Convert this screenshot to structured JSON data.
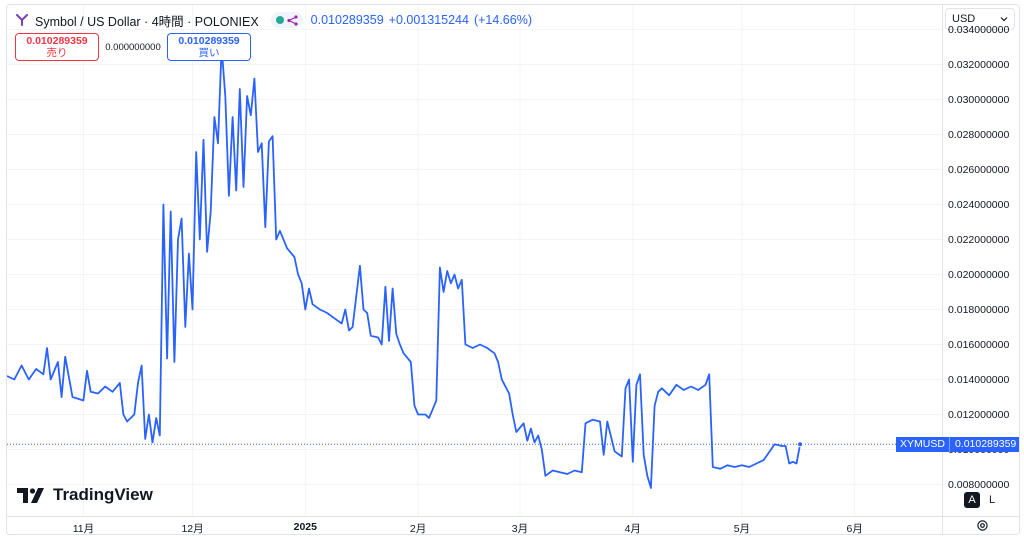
{
  "header": {
    "symbol_title": "Symbol / US Dollar · 4時間 · POLONIEX",
    "last_price": "0.010289359",
    "change": "+0.001315244",
    "change_pct": "(+14.66%)"
  },
  "trade": {
    "sell_value": "0.010289359",
    "sell_label": "売り",
    "spread": "0.000000000",
    "buy_value": "0.010289359",
    "buy_label": "買い"
  },
  "currency_select": {
    "value": "USD"
  },
  "price_tag": {
    "symbol": "XYMUSD",
    "value": "0.010289359"
  },
  "branding": {
    "logo_text": "TradingView"
  },
  "scale_buttons": {
    "auto": "A",
    "log": "L"
  },
  "colors": {
    "line": "#2962ff",
    "up": "#22ab94",
    "down": "#f23645",
    "axis_text": "#131722"
  },
  "chart_data": {
    "type": "line",
    "y_ticks": [
      "0.034000000",
      "0.032000000",
      "0.030000000",
      "0.028000000",
      "0.026000000",
      "0.024000000",
      "0.022000000",
      "0.020000000",
      "0.018000000",
      "0.016000000",
      "0.014000000",
      "0.012000000",
      "0.010000000",
      "0.008000000"
    ],
    "y_tick_values": [
      0.034,
      0.032,
      0.03,
      0.028,
      0.026,
      0.024,
      0.022,
      0.02,
      0.018,
      0.016,
      0.014,
      0.012,
      0.01,
      0.008
    ],
    "ylim": [
      0.0062,
      0.0354
    ],
    "x_ticks": [
      {
        "label": "11月",
        "date": "2024-11-01",
        "bold": false
      },
      {
        "label": "12月",
        "date": "2024-12-01",
        "bold": false
      },
      {
        "label": "2025",
        "date": "2025-01-01",
        "bold": true
      },
      {
        "label": "2月",
        "date": "2025-02-01",
        "bold": false
      },
      {
        "label": "3月",
        "date": "2025-03-01",
        "bold": false
      },
      {
        "label": "4月",
        "date": "2025-04-01",
        "bold": false
      },
      {
        "label": "5月",
        "date": "2025-05-01",
        "bold": false
      },
      {
        "label": "6月",
        "date": "2025-06-01",
        "bold": false
      }
    ],
    "xlim": [
      "2024-10-11",
      "2025-06-25"
    ],
    "series": [
      {
        "values": [
          [
            "2024-10-11",
            0.0142
          ],
          [
            "2024-10-13",
            0.014
          ],
          [
            "2024-10-15",
            0.0148
          ],
          [
            "2024-10-17",
            0.014
          ],
          [
            "2024-10-19",
            0.0146
          ],
          [
            "2024-10-21",
            0.0143
          ],
          [
            "2024-10-22",
            0.0158
          ],
          [
            "2024-10-23",
            0.014
          ],
          [
            "2024-10-25",
            0.015
          ],
          [
            "2024-10-26",
            0.013
          ],
          [
            "2024-10-27",
            0.0153
          ],
          [
            "2024-10-29",
            0.013
          ],
          [
            "2024-11-01",
            0.0128
          ],
          [
            "2024-11-02",
            0.0145
          ],
          [
            "2024-11-03",
            0.0133
          ],
          [
            "2024-11-05",
            0.0132
          ],
          [
            "2024-11-07",
            0.0136
          ],
          [
            "2024-11-09",
            0.0133
          ],
          [
            "2024-11-11",
            0.0138
          ],
          [
            "2024-11-12",
            0.012
          ],
          [
            "2024-11-13",
            0.0116
          ],
          [
            "2024-11-15",
            0.012
          ],
          [
            "2024-11-16",
            0.0138
          ],
          [
            "2024-11-17",
            0.0148
          ],
          [
            "2024-11-18",
            0.0106
          ],
          [
            "2024-11-19",
            0.012
          ],
          [
            "2024-11-20",
            0.0104
          ],
          [
            "2024-11-21",
            0.0118
          ],
          [
            "2024-11-22",
            0.0108
          ],
          [
            "2024-11-23",
            0.024
          ],
          [
            "2024-11-24",
            0.0152
          ],
          [
            "2024-11-25",
            0.0236
          ],
          [
            "2024-11-26",
            0.015
          ],
          [
            "2024-11-27",
            0.022
          ],
          [
            "2024-11-28",
            0.0232
          ],
          [
            "2024-11-29",
            0.017
          ],
          [
            "2024-11-30",
            0.0212
          ],
          [
            "2024-12-01",
            0.018
          ],
          [
            "2024-12-02",
            0.027
          ],
          [
            "2024-12-03",
            0.022
          ],
          [
            "2024-12-04",
            0.0277
          ],
          [
            "2024-12-05",
            0.0213
          ],
          [
            "2024-12-06",
            0.0236
          ],
          [
            "2024-12-07",
            0.029
          ],
          [
            "2024-12-08",
            0.0275
          ],
          [
            "2024-12-09",
            0.033
          ],
          [
            "2024-12-10",
            0.0302
          ],
          [
            "2024-12-11",
            0.0245
          ],
          [
            "2024-12-12",
            0.029
          ],
          [
            "2024-12-13",
            0.0248
          ],
          [
            "2024-12-14",
            0.0306
          ],
          [
            "2024-12-15",
            0.025
          ],
          [
            "2024-12-16",
            0.0302
          ],
          [
            "2024-12-17",
            0.0291
          ],
          [
            "2024-12-18",
            0.0312
          ],
          [
            "2024-12-19",
            0.027
          ],
          [
            "2024-12-20",
            0.0275
          ],
          [
            "2024-12-21",
            0.0227
          ],
          [
            "2024-12-22",
            0.0276
          ],
          [
            "2024-12-23",
            0.0279
          ],
          [
            "2024-12-24",
            0.022
          ],
          [
            "2024-12-25",
            0.0225
          ],
          [
            "2024-12-27",
            0.0215
          ],
          [
            "2024-12-29",
            0.021
          ],
          [
            "2024-12-30",
            0.02
          ],
          [
            "2024-12-31",
            0.0195
          ],
          [
            "2025-01-01",
            0.018
          ],
          [
            "2025-01-02",
            0.0192
          ],
          [
            "2025-01-03",
            0.0183
          ],
          [
            "2025-01-05",
            0.018
          ],
          [
            "2025-01-07",
            0.0178
          ],
          [
            "2025-01-09",
            0.0175
          ],
          [
            "2025-01-11",
            0.0172
          ],
          [
            "2025-01-12",
            0.018
          ],
          [
            "2025-01-13",
            0.0168
          ],
          [
            "2025-01-14",
            0.017
          ],
          [
            "2025-01-16",
            0.0205
          ],
          [
            "2025-01-17",
            0.018
          ],
          [
            "2025-01-18",
            0.0178
          ],
          [
            "2025-01-19",
            0.0165
          ],
          [
            "2025-01-21",
            0.0164
          ],
          [
            "2025-01-22",
            0.016
          ],
          [
            "2025-01-23",
            0.0193
          ],
          [
            "2025-01-24",
            0.0162
          ],
          [
            "2025-01-25",
            0.0192
          ],
          [
            "2025-01-26",
            0.0166
          ],
          [
            "2025-01-27",
            0.016
          ],
          [
            "2025-01-28",
            0.0155
          ],
          [
            "2025-01-30",
            0.015
          ],
          [
            "2025-01-31",
            0.0125
          ],
          [
            "2025-02-01",
            0.012
          ],
          [
            "2025-02-03",
            0.012
          ],
          [
            "2025-02-04",
            0.0118
          ],
          [
            "2025-02-05",
            0.0123
          ],
          [
            "2025-02-06",
            0.0128
          ],
          [
            "2025-02-07",
            0.0204
          ],
          [
            "2025-02-08",
            0.019
          ],
          [
            "2025-02-09",
            0.0202
          ],
          [
            "2025-02-10",
            0.0195
          ],
          [
            "2025-02-11",
            0.02
          ],
          [
            "2025-02-12",
            0.0192
          ],
          [
            "2025-02-13",
            0.0197
          ],
          [
            "2025-02-14",
            0.016
          ],
          [
            "2025-02-16",
            0.0158
          ],
          [
            "2025-02-18",
            0.016
          ],
          [
            "2025-02-20",
            0.0158
          ],
          [
            "2025-02-22",
            0.0155
          ],
          [
            "2025-02-23",
            0.015
          ],
          [
            "2025-02-24",
            0.014
          ],
          [
            "2025-02-26",
            0.0132
          ],
          [
            "2025-02-27",
            0.012
          ],
          [
            "2025-02-28",
            0.011
          ],
          [
            "2025-03-02",
            0.0115
          ],
          [
            "2025-03-03",
            0.0105
          ],
          [
            "2025-03-04",
            0.0112
          ],
          [
            "2025-03-05",
            0.0104
          ],
          [
            "2025-03-06",
            0.0108
          ],
          [
            "2025-03-07",
            0.01
          ],
          [
            "2025-03-08",
            0.0085
          ],
          [
            "2025-03-10",
            0.0088
          ],
          [
            "2025-03-12",
            0.0087
          ],
          [
            "2025-03-14",
            0.0086
          ],
          [
            "2025-03-16",
            0.0088
          ],
          [
            "2025-03-18",
            0.0087
          ],
          [
            "2025-03-19",
            0.0115
          ],
          [
            "2025-03-21",
            0.0117
          ],
          [
            "2025-03-23",
            0.0116
          ],
          [
            "2025-03-24",
            0.0097
          ],
          [
            "2025-03-25",
            0.0116
          ],
          [
            "2025-03-27",
            0.0099
          ],
          [
            "2025-03-29",
            0.0096
          ],
          [
            "2025-03-30",
            0.0135
          ],
          [
            "2025-03-31",
            0.014
          ],
          [
            "2025-04-01",
            0.0093
          ],
          [
            "2025-04-02",
            0.0137
          ],
          [
            "2025-04-03",
            0.0143
          ],
          [
            "2025-04-04",
            0.0097
          ],
          [
            "2025-04-05",
            0.0085
          ],
          [
            "2025-04-06",
            0.0078
          ],
          [
            "2025-04-07",
            0.0125
          ],
          [
            "2025-04-08",
            0.0133
          ],
          [
            "2025-04-09",
            0.0135
          ],
          [
            "2025-04-11",
            0.0131
          ],
          [
            "2025-04-13",
            0.0137
          ],
          [
            "2025-04-15",
            0.0134
          ],
          [
            "2025-04-17",
            0.0136
          ],
          [
            "2025-04-19",
            0.0134
          ],
          [
            "2025-04-21",
            0.0137
          ],
          [
            "2025-04-22",
            0.0143
          ],
          [
            "2025-04-23",
            0.009
          ],
          [
            "2025-04-25",
            0.0089
          ],
          [
            "2025-04-27",
            0.0091
          ],
          [
            "2025-04-29",
            0.009
          ],
          [
            "2025-05-01",
            0.0091
          ],
          [
            "2025-05-03",
            0.009
          ],
          [
            "2025-05-05",
            0.0092
          ],
          [
            "2025-05-07",
            0.0094
          ],
          [
            "2025-05-09",
            0.01
          ],
          [
            "2025-05-10",
            0.0103
          ],
          [
            "2025-05-12",
            0.0102
          ],
          [
            "2025-05-13",
            0.0102
          ],
          [
            "2025-05-14",
            0.0092
          ],
          [
            "2025-05-15",
            0.0093
          ],
          [
            "2025-05-16",
            0.0092
          ],
          [
            "2025-05-17",
            0.0103
          ]
        ]
      }
    ]
  }
}
